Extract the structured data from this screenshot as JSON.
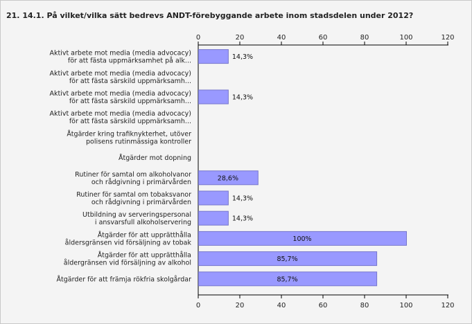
{
  "title": "21. 14.1. På vilket/vilka sätt bedrevs ANDT-förebyggande arbete inom stadsdelen under 2012?",
  "colors": {
    "bar": "#9999ff",
    "bar_border": "#7777cc",
    "axis": "#000000",
    "background": "#f4f4f4"
  },
  "chart_data": {
    "type": "bar",
    "orientation": "horizontal",
    "title": "21. 14.1. På vilket/vilka sätt bedrevs ANDT-förebyggande arbete inom stadsdelen under 2012?",
    "categories": [
      [
        "Aktivt arbete mot media (media advocacy)",
        "för att fästa uppmärksamhet på alk..."
      ],
      [
        "Aktivt arbete mot media (media advocacy)",
        "för att fästa särskild uppmärksamh..."
      ],
      [
        "Aktivt arbete mot media (media advocacy)",
        "för att fästa särskild uppmärksamh..."
      ],
      [
        "Aktivt arbete mot media (media advocacy)",
        "för att fästa särskild uppmärksamh..."
      ],
      [
        "Åtgärder kring trafiknykterhet, utöver",
        "polisens rutinmässiga kontroller"
      ],
      [
        "Åtgärder mot dopning"
      ],
      [
        "Rutiner för samtal om alkoholvanor",
        "och rådgivning i primärvården"
      ],
      [
        "Rutiner för samtal om tobaksvanor",
        "och rådgivning i primärvården"
      ],
      [
        "Utbildning av serveringspersonal",
        "i ansvarsfull alkoholservering"
      ],
      [
        "Åtgärder för att upprätthålla",
        "åldersgränsen vid försäljning av tobak"
      ],
      [
        "Åtgärder för att upprätthålla",
        "åldergränsen vid försäljning av alkohol"
      ],
      [
        "Åtgärder för att främja rökfria skolgårdar"
      ]
    ],
    "values": [
      14.3,
      null,
      14.3,
      null,
      null,
      null,
      28.6,
      14.3,
      14.3,
      100,
      85.7,
      85.7
    ],
    "data_labels": [
      "14,3%",
      "",
      "14,3%",
      "",
      "",
      "",
      "28,6%",
      "14,3%",
      "14,3%",
      "100%",
      "85,7%",
      "85,7%"
    ],
    "xlim": [
      0,
      120
    ],
    "ticks": [
      0,
      20,
      40,
      60,
      80,
      100,
      120
    ],
    "axis_top_and_bottom": true,
    "grid": false
  }
}
